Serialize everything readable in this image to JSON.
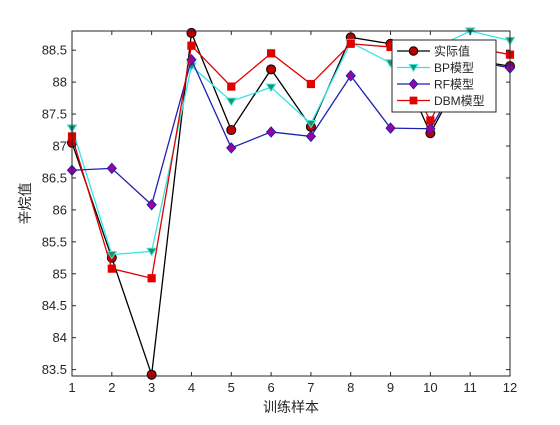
{
  "chart_data": {
    "type": "line",
    "xlabel": "训练样本",
    "ylabel": "辛烷值",
    "x": [
      1,
      2,
      3,
      4,
      5,
      6,
      7,
      8,
      9,
      10,
      11,
      12
    ],
    "xlim": [
      1,
      12
    ],
    "ylim": [
      83.4,
      88.8
    ],
    "xticks": [
      1,
      2,
      3,
      4,
      5,
      6,
      7,
      8,
      9,
      10,
      11,
      12
    ],
    "yticks": [
      83.5,
      84,
      84.5,
      85,
      85.5,
      86,
      86.5,
      87,
      87.5,
      88,
      88.5
    ],
    "ytick_labels": [
      "83.5",
      "84",
      "84.5",
      "85",
      "85.5",
      "86",
      "86.5",
      "87",
      "87.5",
      "88",
      "88.5"
    ],
    "grid": false,
    "legend_position": "top-right",
    "series": [
      {
        "name": "实际值",
        "color": "#000000",
        "marker": "circle",
        "marker_fill": "#c00000",
        "values": [
          87.05,
          85.25,
          83.42,
          88.77,
          87.25,
          88.2,
          87.3,
          88.7,
          88.6,
          87.2,
          88.35,
          88.25
        ]
      },
      {
        "name": "BP模型",
        "color": "#33e6e6",
        "marker": "triangle-down",
        "marker_fill": "#2e8b57",
        "values": [
          87.28,
          85.3,
          85.35,
          88.25,
          87.7,
          87.92,
          87.35,
          88.62,
          88.3,
          88.5,
          88.8,
          88.65
        ]
      },
      {
        "name": "RF模型",
        "color": "#1f1fb4",
        "marker": "diamond",
        "marker_fill": "#a000a0",
        "values": [
          86.62,
          86.65,
          86.08,
          88.35,
          86.97,
          87.22,
          87.15,
          88.1,
          87.28,
          87.27,
          88.35,
          88.22
        ]
      },
      {
        "name": "DBM模型",
        "color": "#e00000",
        "marker": "square",
        "marker_fill": "#e00000",
        "values": [
          87.15,
          85.08,
          84.93,
          88.57,
          87.93,
          88.45,
          87.97,
          88.6,
          88.55,
          87.4,
          88.55,
          88.43
        ]
      }
    ]
  }
}
